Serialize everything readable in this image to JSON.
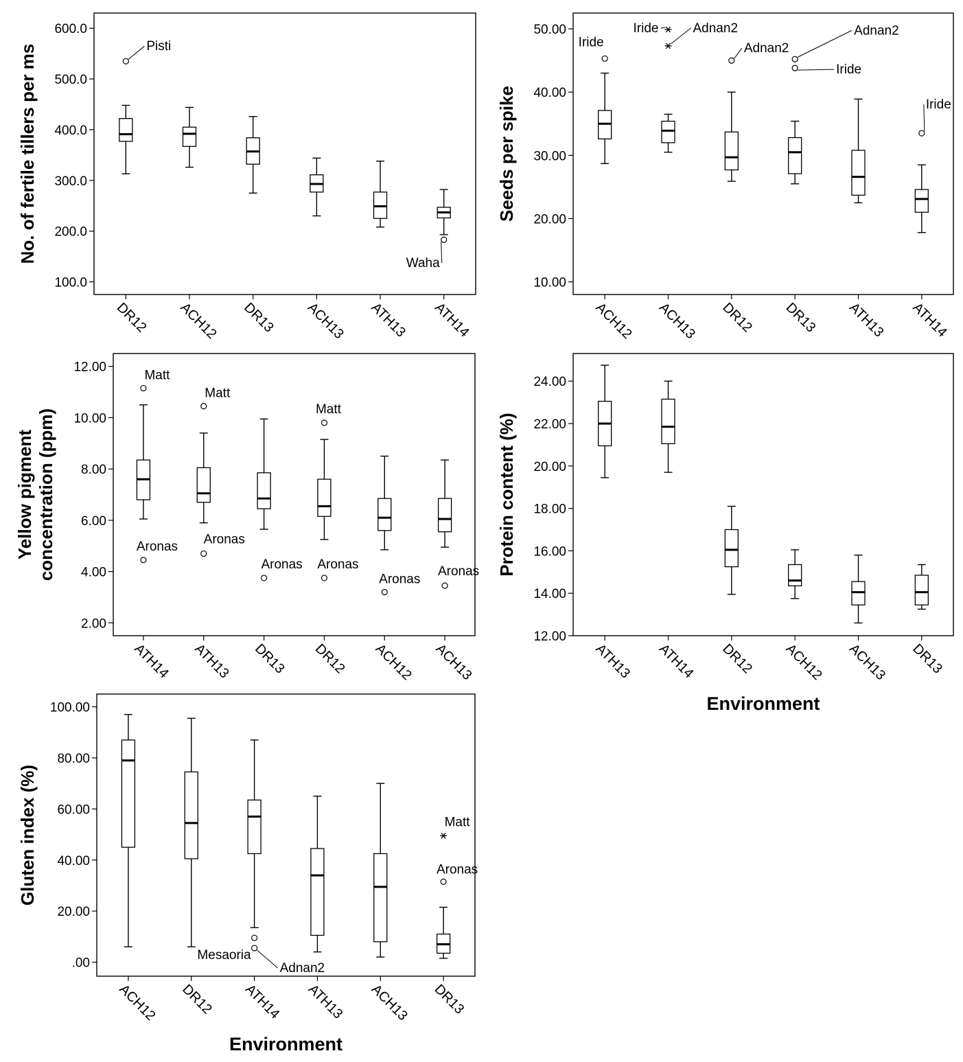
{
  "chart_data": [
    {
      "type": "box",
      "ylabel": "No. of fertile tillers per ms",
      "xlabel": "",
      "ylim": [
        75,
        630
      ],
      "yticks": [
        100,
        200,
        300,
        400,
        500,
        600
      ],
      "ytick_labels": [
        "100.0",
        "200.0",
        "300.0",
        "400.0",
        "500.0",
        "600.0"
      ],
      "categories": [
        "DR12",
        "ACH12",
        "DR13",
        "ACH13",
        "ATH13",
        "ATH14"
      ],
      "boxes": [
        {
          "whisker_low": 313,
          "q1": 377,
          "median": 391,
          "q3": 422,
          "whisker_high": 448
        },
        {
          "whisker_low": 326,
          "q1": 367,
          "median": 392,
          "q3": 405,
          "whisker_high": 444
        },
        {
          "whisker_low": 275,
          "q1": 332,
          "median": 357,
          "q3": 384,
          "whisker_high": 426
        },
        {
          "whisker_low": 230,
          "q1": 277,
          "median": 293,
          "q3": 311,
          "whisker_high": 344
        },
        {
          "whisker_low": 208,
          "q1": 225,
          "median": 249,
          "q3": 277,
          "whisker_high": 338
        },
        {
          "whisker_low": 193,
          "q1": 226,
          "median": 237,
          "q3": 247,
          "whisker_high": 282
        }
      ],
      "outliers": [
        {
          "category": "DR12",
          "value": 535,
          "symbol": "circle",
          "label": "Pisti"
        },
        {
          "category": "ATH14",
          "value": 183,
          "symbol": "circle",
          "label": "Waha"
        }
      ]
    },
    {
      "type": "box",
      "ylabel": "Seeds per spike",
      "xlabel": "",
      "ylim": [
        8,
        52.5
      ],
      "yticks": [
        10,
        20,
        30,
        40,
        50
      ],
      "ytick_labels": [
        "10.00",
        "20.00",
        "30.00",
        "40.00",
        "50.00"
      ],
      "categories": [
        "ACH12",
        "ACH13",
        "DR12",
        "DR13",
        "ATH13",
        "ATH14"
      ],
      "boxes": [
        {
          "whisker_low": 28.7,
          "q1": 32.6,
          "median": 35.0,
          "q3": 37.1,
          "whisker_high": 43.0
        },
        {
          "whisker_low": 30.5,
          "q1": 32.0,
          "median": 33.9,
          "q3": 35.4,
          "whisker_high": 36.5
        },
        {
          "whisker_low": 25.9,
          "q1": 27.7,
          "median": 29.7,
          "q3": 33.7,
          "whisker_high": 40.0
        },
        {
          "whisker_low": 25.5,
          "q1": 27.1,
          "median": 30.5,
          "q3": 32.8,
          "whisker_high": 35.4
        },
        {
          "whisker_low": 22.5,
          "q1": 23.7,
          "median": 26.6,
          "q3": 30.8,
          "whisker_high": 38.9
        },
        {
          "whisker_low": 17.8,
          "q1": 21.0,
          "median": 23.1,
          "q3": 24.6,
          "whisker_high": 28.5
        }
      ],
      "outliers": [
        {
          "category": "ACH12",
          "value": 45.3,
          "symbol": "circle",
          "label": "Iride"
        },
        {
          "category": "ACH13",
          "value": 49.9,
          "symbol": "star",
          "label": "Iride"
        },
        {
          "category": "ACH13",
          "value": 47.3,
          "symbol": "star",
          "label": "Adnan2"
        },
        {
          "category": "DR12",
          "value": 45.0,
          "symbol": "circle",
          "label": "Adnan2"
        },
        {
          "category": "DR13",
          "value": 45.2,
          "symbol": "circle",
          "label": "Adnan2"
        },
        {
          "category": "DR13",
          "value": 43.8,
          "symbol": "circle",
          "label": "Iride"
        },
        {
          "category": "ATH14",
          "value": 33.5,
          "symbol": "circle",
          "label": "Iride"
        }
      ]
    },
    {
      "type": "box",
      "ylabel": "Yellow pigment concentration (ppm)",
      "ylabel_lines": [
        "Yellow pigment",
        "concentration (ppm)"
      ],
      "xlabel": "",
      "ylim": [
        1.5,
        12.5
      ],
      "yticks": [
        2,
        4,
        6,
        8,
        10,
        12
      ],
      "ytick_labels": [
        "2.00",
        "4.00",
        "6.00",
        "8.00",
        "10.00",
        "12.00"
      ],
      "categories": [
        "ATH14",
        "ATH13",
        "DR13",
        "DR12",
        "ACH12",
        "ACH13"
      ],
      "boxes": [
        {
          "whisker_low": 6.05,
          "q1": 6.8,
          "median": 7.6,
          "q3": 8.35,
          "whisker_high": 10.5
        },
        {
          "whisker_low": 5.9,
          "q1": 6.7,
          "median": 7.05,
          "q3": 8.05,
          "whisker_high": 9.4
        },
        {
          "whisker_low": 5.65,
          "q1": 6.45,
          "median": 6.85,
          "q3": 7.85,
          "whisker_high": 9.95
        },
        {
          "whisker_low": 5.25,
          "q1": 6.15,
          "median": 6.55,
          "q3": 7.6,
          "whisker_high": 9.15
        },
        {
          "whisker_low": 4.85,
          "q1": 5.6,
          "median": 6.1,
          "q3": 6.85,
          "whisker_high": 8.5
        },
        {
          "whisker_low": 4.95,
          "q1": 5.55,
          "median": 6.05,
          "q3": 6.85,
          "whisker_high": 8.35
        }
      ],
      "outliers": [
        {
          "category": "ATH14",
          "value": 11.15,
          "symbol": "circle",
          "label": "Matt"
        },
        {
          "category": "ATH14",
          "value": 4.45,
          "symbol": "circle",
          "label": "Aronas"
        },
        {
          "category": "ATH13",
          "value": 10.45,
          "symbol": "circle",
          "label": "Matt"
        },
        {
          "category": "ATH13",
          "value": 4.7,
          "symbol": "circle",
          "label": "Aronas"
        },
        {
          "category": "DR13",
          "value": 3.75,
          "symbol": "circle",
          "label": "Aronas"
        },
        {
          "category": "DR12",
          "value": 9.8,
          "symbol": "circle",
          "label": "Matt"
        },
        {
          "category": "DR12",
          "value": 3.75,
          "symbol": "circle",
          "label": "Aronas"
        },
        {
          "category": "ACH12",
          "value": 3.2,
          "symbol": "circle",
          "label": "Aronas"
        },
        {
          "category": "ACH13",
          "value": 3.45,
          "symbol": "circle",
          "label": "Aronas"
        }
      ]
    },
    {
      "type": "box",
      "ylabel": "Protein content (%)",
      "xlabel": "Environment",
      "ylim": [
        12,
        25.3
      ],
      "yticks": [
        12,
        14,
        16,
        18,
        20,
        22,
        24
      ],
      "ytick_labels": [
        "12.00",
        "14.00",
        "16.00",
        "18.00",
        "20.00",
        "22.00",
        "24.00"
      ],
      "categories": [
        "ATH13",
        "ATH14",
        "DR12",
        "ACH12",
        "ACH13",
        "DR13"
      ],
      "boxes": [
        {
          "whisker_low": 19.45,
          "q1": 20.95,
          "median": 22.0,
          "q3": 23.05,
          "whisker_high": 24.75
        },
        {
          "whisker_low": 19.7,
          "q1": 21.05,
          "median": 21.85,
          "q3": 23.15,
          "whisker_high": 24.0
        },
        {
          "whisker_low": 13.95,
          "q1": 15.25,
          "median": 16.05,
          "q3": 17.0,
          "whisker_high": 18.1
        },
        {
          "whisker_low": 13.75,
          "q1": 14.35,
          "median": 14.6,
          "q3": 15.35,
          "whisker_high": 16.05
        },
        {
          "whisker_low": 12.6,
          "q1": 13.45,
          "median": 14.05,
          "q3": 14.55,
          "whisker_high": 15.8
        },
        {
          "whisker_low": 13.25,
          "q1": 13.45,
          "median": 14.05,
          "q3": 14.85,
          "whisker_high": 15.35
        }
      ],
      "outliers": []
    },
    {
      "type": "box",
      "ylabel": "Gluten index (%)",
      "xlabel": "Environment",
      "ylim": [
        -5.5,
        105
      ],
      "yticks": [
        0,
        20,
        40,
        60,
        80,
        100
      ],
      "ytick_labels": [
        ".00",
        "20.00",
        "40.00",
        "60.00",
        "80.00",
        "100.00"
      ],
      "categories": [
        "ACH12",
        "DR12",
        "ATH14",
        "ATH13",
        "ACH13",
        "DR13"
      ],
      "boxes": [
        {
          "whisker_low": 6,
          "q1": 45,
          "median": 79,
          "q3": 87,
          "whisker_high": 97
        },
        {
          "whisker_low": 6,
          "q1": 40.5,
          "median": 54.5,
          "q3": 74.5,
          "whisker_high": 95.5
        },
        {
          "whisker_low": 13.5,
          "q1": 42.5,
          "median": 57,
          "q3": 63.5,
          "whisker_high": 87
        },
        {
          "whisker_low": 4,
          "q1": 10.5,
          "median": 34,
          "q3": 44.5,
          "whisker_high": 65
        },
        {
          "whisker_low": 2,
          "q1": 8,
          "median": 29.5,
          "q3": 42.5,
          "whisker_high": 70
        },
        {
          "whisker_low": 1.5,
          "q1": 3.5,
          "median": 7,
          "q3": 11,
          "whisker_high": 21.5
        }
      ],
      "outliers": [
        {
          "category": "ATH14",
          "value": 9.5,
          "symbol": "circle",
          "label": "Mesaoria"
        },
        {
          "category": "ATH14",
          "value": 5.5,
          "symbol": "circle",
          "label": "Adnan2"
        },
        {
          "category": "DR13",
          "value": 49.5,
          "symbol": "star",
          "label": "Matt"
        },
        {
          "category": "DR13",
          "value": 31.5,
          "symbol": "circle",
          "label": "Aronas"
        }
      ]
    }
  ]
}
